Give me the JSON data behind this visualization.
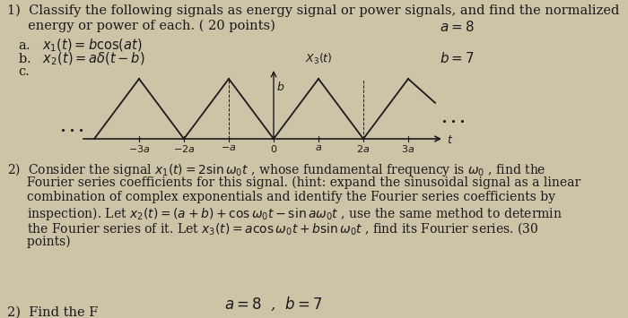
{
  "bg_color": "#cdc4a8",
  "text_color": "#1a1a1a",
  "title_line1": "1)  Classify the following signals as energy signal or power signals, and find the normalized",
  "title_line2": "     energy or power of each. ( 20 points)",
  "item_a": "a.   $x_1(t) = b\\cos(at)$",
  "item_b": "b.   $x_2(t) = a\\delta(t-b)$",
  "item_c": "c.",
  "top_right1": "$a = 8$",
  "top_right2": "$b = 7$",
  "section2_line1": "2)  Consider the signal $x_1(t) = 2\\sin\\omega_0 t$ , whose fundamental frequency is $\\omega_0$ , find the",
  "section2_line2": "     Fourier series coefficients for this signal. (hint: expand the sinusoidal signal as a linear",
  "section2_line3": "     combination of complex exponentials and identify the Fourier series coefficients by",
  "section2_line4": "     inspection). Let $x_2(t) = (a+b)+\\cos\\omega_0 t - \\sin a\\omega_0 t$ , use the same method to determin",
  "section2_line5": "     the Fourier series of it. Let $x_3(t) = a\\cos\\omega_0 t + b\\sin\\omega_0 t$ , find its Fourier series. (30",
  "section2_line6": "     points)",
  "bottom_handwritten": "$a = 8$  ,  $b = 7$",
  "section3_partial": "2)  Find the F",
  "font_size_main": 10.5,
  "font_size_small": 10.0
}
